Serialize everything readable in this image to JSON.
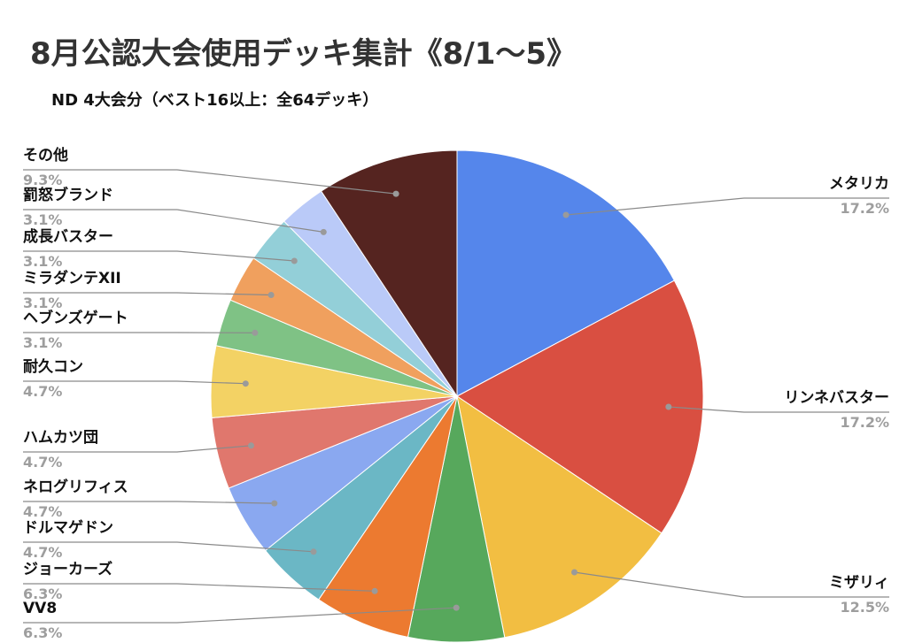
{
  "chart_data": {
    "type": "pie",
    "title": "8月公認大会使用デッキ集計《8/1〜5》",
    "subtitle": "ND 4大会分（ベスト16以上：全64デッキ）",
    "categories": [
      "メタリカ",
      "リンネバスター",
      "ミザリィ",
      "VV8",
      "ジョーカーズ",
      "ドルマゲドン",
      "ネログリフィス",
      "ハムカツ団",
      "耐久コン",
      "ヘブンズゲート",
      "ミラダンテXII",
      "成長バスター",
      "罰怒ブランド",
      "その他"
    ],
    "values": [
      17.2,
      17.2,
      12.5,
      6.3,
      6.3,
      4.7,
      4.7,
      4.7,
      4.7,
      3.1,
      3.1,
      3.1,
      3.1,
      9.3
    ],
    "labels": [
      "17.2%",
      "17.2%",
      "12.5%",
      "6.3%",
      "6.3%",
      "4.7%",
      "4.7%",
      "4.7%",
      "4.7%",
      "3.1%",
      "3.1%",
      "3.1%",
      "3.1%",
      "9.3%"
    ],
    "colors": [
      "#5586eb",
      "#d94f41",
      "#f2be42",
      "#57a85c",
      "#ec7a30",
      "#6bb7c5",
      "#8aa8f0",
      "#e0776d",
      "#f3d264",
      "#7fc285",
      "#f0a05e",
      "#93cfd8",
      "#bacaf8",
      "#552420"
    ],
    "legend": "none"
  }
}
